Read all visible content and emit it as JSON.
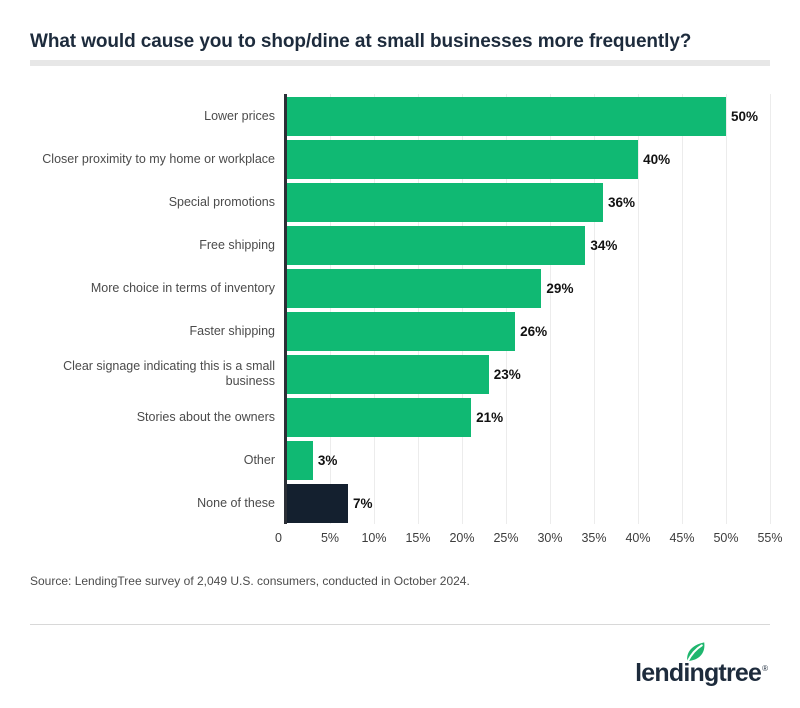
{
  "header": {
    "title": "What would cause you to shop/dine at small businesses more frequently?"
  },
  "chart_data": {
    "type": "bar",
    "orientation": "horizontal",
    "title": "What would cause you to shop/dine at small businesses more frequently?",
    "categories": [
      "Lower prices",
      "Closer proximity to my home or workplace",
      "Special promotions",
      "Free shipping",
      "More choice in terms of inventory",
      "Faster shipping",
      "Clear signage indicating this is a small business",
      "Stories about the owners",
      "Other",
      "None of these"
    ],
    "values": [
      50,
      40,
      36,
      34,
      29,
      26,
      23,
      21,
      3,
      7
    ],
    "value_labels": [
      "50%",
      "40%",
      "36%",
      "34%",
      "29%",
      "26%",
      "23%",
      "21%",
      "3%",
      "7%"
    ],
    "xlim": [
      0,
      55
    ],
    "x_ticks": [
      "0",
      "5%",
      "10%",
      "15%",
      "20%",
      "25%",
      "30%",
      "35%",
      "40%",
      "45%",
      "50%",
      "55%"
    ],
    "grid": true,
    "legend": "none",
    "highlight_index": 9
  },
  "colors": {
    "bar": "#10b973",
    "highlight_bar": "#14202f",
    "title_navy": "#1d2b3c",
    "leaf_green": "#1fb66e"
  },
  "source": {
    "text": "Source: LendingTree survey of 2,049 U.S. consumers, conducted in October 2024."
  },
  "footer": {
    "logo_text": "lendingtree",
    "registered_mark": "®"
  }
}
